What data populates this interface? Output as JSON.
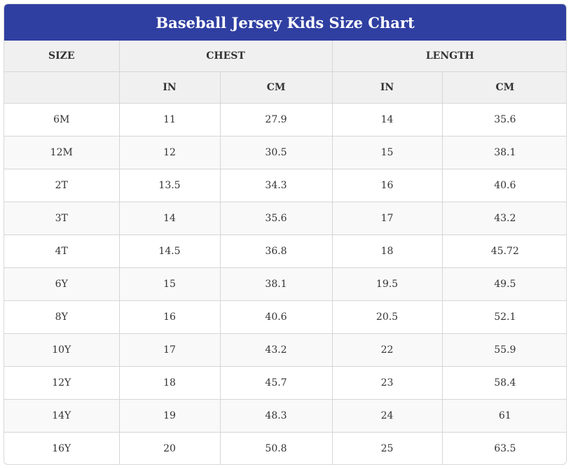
{
  "title": "Baseball Jersey Kids Size Chart",
  "headers": {
    "size": "SIZE",
    "chest": "CHEST",
    "length": "LENGTH",
    "chest_in": "IN",
    "chest_cm": "CM",
    "length_in": "IN",
    "length_cm": "CM"
  },
  "rows": [
    {
      "size": "6M",
      "chest_in": "11",
      "chest_cm": "27.9",
      "length_in": "14",
      "length_cm": "35.6"
    },
    {
      "size": "12M",
      "chest_in": "12",
      "chest_cm": "30.5",
      "length_in": "15",
      "length_cm": "38.1"
    },
    {
      "size": "2T",
      "chest_in": "13.5",
      "chest_cm": "34.3",
      "length_in": "16",
      "length_cm": "40.6"
    },
    {
      "size": "3T",
      "chest_in": "14",
      "chest_cm": "35.6",
      "length_in": "17",
      "length_cm": "43.2"
    },
    {
      "size": "4T",
      "chest_in": "14.5",
      "chest_cm": "36.8",
      "length_in": "18",
      "length_cm": "45.72"
    },
    {
      "size": "6Y",
      "chest_in": "15",
      "chest_cm": "38.1",
      "length_in": "19.5",
      "length_cm": "49.5"
    },
    {
      "size": "8Y",
      "chest_in": "16",
      "chest_cm": "40.6",
      "length_in": "20.5",
      "length_cm": "52.1"
    },
    {
      "size": "10Y",
      "chest_in": "17",
      "chest_cm": "43.2",
      "length_in": "22",
      "length_cm": "55.9"
    },
    {
      "size": "12Y",
      "chest_in": "18",
      "chest_cm": "45.7",
      "length_in": "23",
      "length_cm": "58.4"
    },
    {
      "size": "14Y",
      "chest_in": "19",
      "chest_cm": "48.3",
      "length_in": "24",
      "length_cm": "61"
    },
    {
      "size": "16Y",
      "chest_in": "20",
      "chest_cm": "50.8",
      "length_in": "25",
      "length_cm": "63.5"
    }
  ],
  "colors": {
    "title_bg": "#2f3fa1",
    "title_text": "#ffffff",
    "header_bg": "#f0f0f0",
    "stripe_bg": "#f9f9f9"
  }
}
